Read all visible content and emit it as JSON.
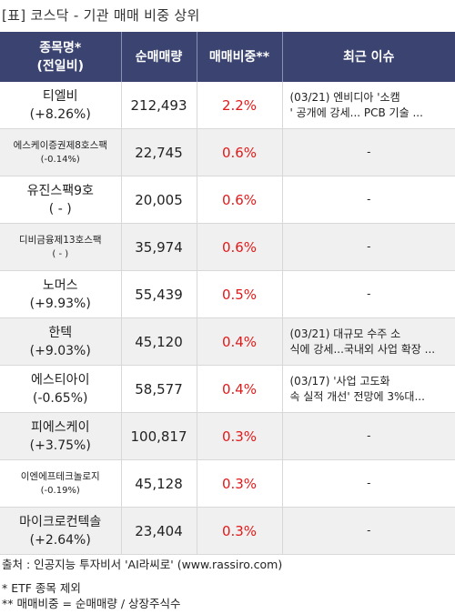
{
  "title": "[표] 코스닥 - 기관 매매 비중 상위",
  "headers": {
    "name_line1": "종목명*",
    "name_line2": "(전일비)",
    "volume": "순매매량",
    "ratio": "매매비중**",
    "issue": "최근 이슈"
  },
  "rows": [
    {
      "name": "티엘비",
      "change": "(+8.26%)",
      "volume": "212,493",
      "ratio": "2.2%",
      "issue_line1": "(03/21) 엔비디아 '소캠",
      "issue_line2": "' 공개에 강세... PCB 기술 ..."
    },
    {
      "name": "에스케이증권제8호스팩",
      "change": "(-0.14%)",
      "volume": "22,745",
      "ratio": "0.6%",
      "issue_line1": "-",
      "issue_line2": ""
    },
    {
      "name": "유진스팩9호",
      "change": "( - )",
      "volume": "20,005",
      "ratio": "0.6%",
      "issue_line1": "-",
      "issue_line2": ""
    },
    {
      "name": "디비금융제13호스팩",
      "change": "( - )",
      "volume": "35,974",
      "ratio": "0.6%",
      "issue_line1": "-",
      "issue_line2": ""
    },
    {
      "name": "노머스",
      "change": "(+9.93%)",
      "volume": "55,439",
      "ratio": "0.5%",
      "issue_line1": "-",
      "issue_line2": ""
    },
    {
      "name": "한텍",
      "change": "(+9.03%)",
      "volume": "45,120",
      "ratio": "0.4%",
      "issue_line1": "(03/21) 대규모 수주 소",
      "issue_line2": "식에 강세...국내외 사업 확장 ..."
    },
    {
      "name": "에스티아이",
      "change": "(-0.65%)",
      "volume": "58,577",
      "ratio": "0.4%",
      "issue_line1": "(03/17) '사업 고도화",
      "issue_line2": "속 실적 개선' 전망에 3%대..."
    },
    {
      "name": "피에스케이",
      "change": "(+3.75%)",
      "volume": "100,817",
      "ratio": "0.3%",
      "issue_line1": "-",
      "issue_line2": ""
    },
    {
      "name": "이엔에프테크놀로지",
      "change": "(-0.19%)",
      "volume": "45,128",
      "ratio": "0.3%",
      "issue_line1": "-",
      "issue_line2": ""
    },
    {
      "name": "마이크로컨텍솔",
      "change": "(+2.64%)",
      "volume": "23,404",
      "ratio": "0.3%",
      "issue_line1": "-",
      "issue_line2": ""
    }
  ],
  "footer": {
    "source": "출처 : 인공지능 투자비서 'AI라씨로' (www.rassiro.com)",
    "note1": "* ETF 종목 제외",
    "note2": "** 매매비중 = 순매매량 / 상장주식수"
  }
}
